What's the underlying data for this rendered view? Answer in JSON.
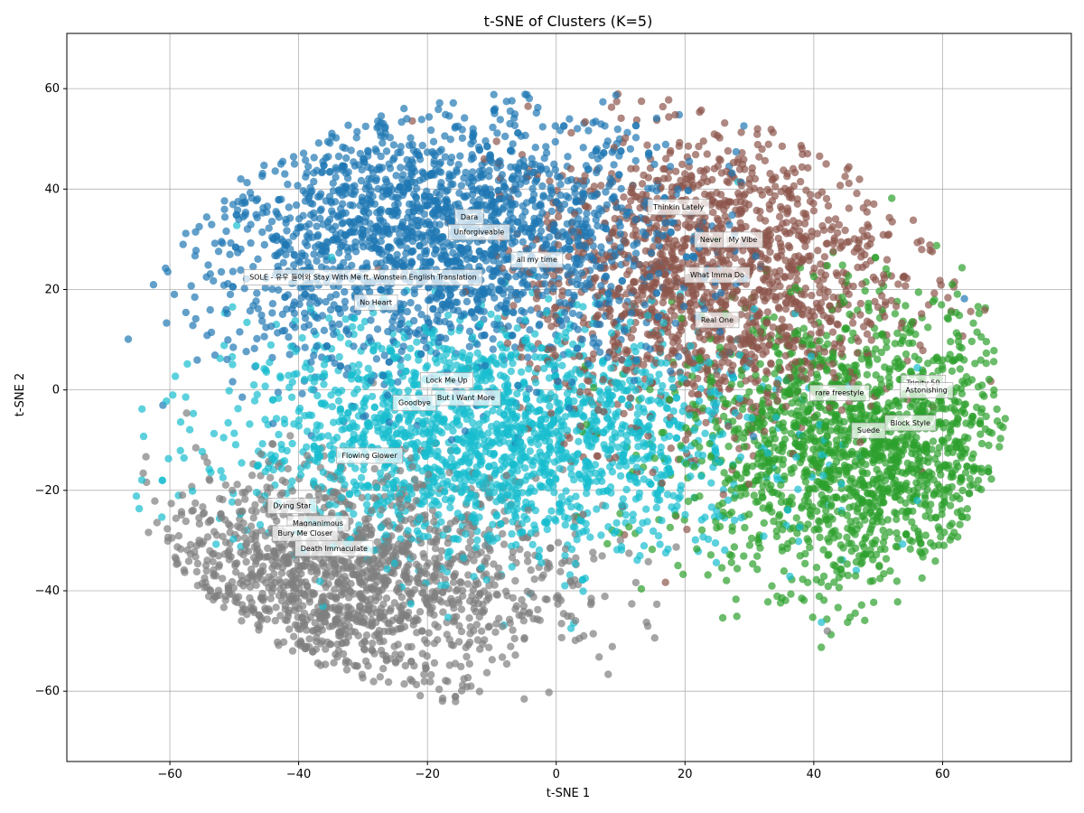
{
  "chart_data": {
    "type": "scatter",
    "title": "t-SNE of Clusters (K=5)",
    "xlabel": "t-SNE 1",
    "ylabel": "t-SNE 2",
    "xlim": [
      -76,
      80
    ],
    "ylim": [
      -74,
      71
    ],
    "xticks": [
      -60,
      -40,
      -20,
      0,
      20,
      40,
      60
    ],
    "yticks": [
      -60,
      -40,
      -20,
      0,
      20,
      40,
      60
    ],
    "grid": true,
    "legend": "none",
    "clusters": [
      {
        "color": "#1f77b4",
        "center": [
          -18,
          30
        ],
        "spread": [
          19,
          13
        ],
        "count": 2200
      },
      {
        "color": "#8c564b",
        "center": [
          25,
          22
        ],
        "spread": [
          14,
          15
        ],
        "count": 1700
      },
      {
        "color": "#2ca02c",
        "center": [
          47,
          -12
        ],
        "spread": [
          14,
          14
        ],
        "count": 1800
      },
      {
        "color": "#17becf",
        "center": [
          -10,
          -10
        ],
        "spread": [
          20,
          12
        ],
        "count": 2000
      },
      {
        "color": "#7f7f7f",
        "center": [
          -35,
          -38
        ],
        "spread": [
          18,
          11
        ],
        "count": 1800
      }
    ],
    "annotations": [
      {
        "label": "Dara",
        "x": -13.5,
        "y": 34.5,
        "cluster": 0
      },
      {
        "label": "Unforgiveable",
        "x": -12,
        "y": 31.5,
        "cluster": 0
      },
      {
        "label": "all my time",
        "x": -3,
        "y": 26,
        "cluster": 0
      },
      {
        "label": "SOLE  - 유우 들어와 Stay With Me ft. Wonstein English Translation",
        "x": -30,
        "y": 22.5,
        "cluster": 0
      },
      {
        "label": "No Heart",
        "x": -28,
        "y": 17.5,
        "cluster": 0
      },
      {
        "label": "Thinkin Lately",
        "x": 19,
        "y": 36.5,
        "cluster": 1
      },
      {
        "label": "Never",
        "x": 24,
        "y": 30,
        "cluster": 1
      },
      {
        "label": "My Vibe",
        "x": 29,
        "y": 30,
        "cluster": 1
      },
      {
        "label": "What Imma Do",
        "x": 25,
        "y": 23,
        "cluster": 1
      },
      {
        "label": "Real One",
        "x": 25,
        "y": 14,
        "cluster": 1
      },
      {
        "label": "Lock Me Up",
        "x": -17,
        "y": 2,
        "cluster": 3
      },
      {
        "label": "But I Want More",
        "x": -14,
        "y": -1.5,
        "cluster": 3
      },
      {
        "label": "Goodbye",
        "x": -22,
        "y": -2.5,
        "cluster": 3
      },
      {
        "label": "Flowing Glower",
        "x": -29,
        "y": -13,
        "cluster": 3
      },
      {
        "label": "rare freestyle",
        "x": 44,
        "y": -0.5,
        "cluster": 2
      },
      {
        "label": "Trinity 50",
        "x": 57,
        "y": 1.5,
        "cluster": 2
      },
      {
        "label": "Astonishing",
        "x": 57.5,
        "y": 0,
        "cluster": 2
      },
      {
        "label": "Block Style",
        "x": 55,
        "y": -6.5,
        "cluster": 2
      },
      {
        "label": "Suede",
        "x": 48.5,
        "y": -8,
        "cluster": 2
      },
      {
        "label": "Dying Star",
        "x": -41,
        "y": -23,
        "cluster": 4
      },
      {
        "label": "Magnanimous",
        "x": -37,
        "y": -26.5,
        "cluster": 4
      },
      {
        "label": "Bury Me Closer",
        "x": -39,
        "y": -28.5,
        "cluster": 4
      },
      {
        "label": "Death Immaculate",
        "x": -34.5,
        "y": -31.5,
        "cluster": 4
      }
    ]
  }
}
